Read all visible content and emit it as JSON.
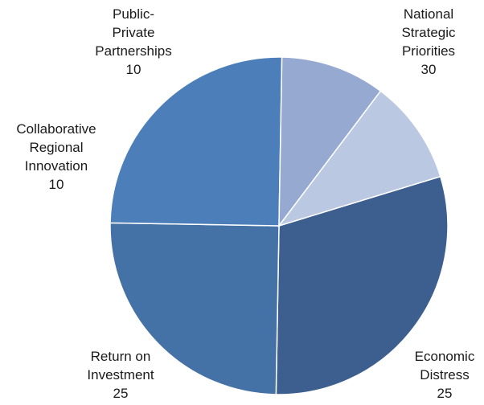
{
  "chart_data": {
    "type": "pie",
    "title": "",
    "slices": [
      {
        "label_lines": [
          "National",
          "Strategic",
          "Priorities"
        ],
        "value": 30,
        "color": "#3c5f8f"
      },
      {
        "label_lines": [
          "Economic",
          "Distress"
        ],
        "value": 25,
        "color": "#4472a6"
      },
      {
        "label_lines": [
          "Return on",
          "Investment"
        ],
        "value": 25,
        "color": "#4c7fba"
      },
      {
        "label_lines": [
          "Collaborative",
          "Regional",
          "Innovation"
        ],
        "value": 10,
        "color": "#95a9d1"
      },
      {
        "label_lines": [
          "Public-",
          "Private",
          "Partnerships"
        ],
        "value": 10,
        "color": "#bac8e2"
      }
    ],
    "start_angle_deg": -17,
    "direction": "clockwise",
    "legend": "none"
  }
}
